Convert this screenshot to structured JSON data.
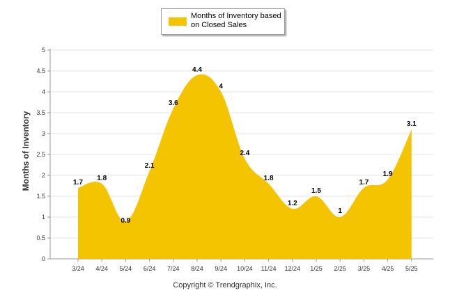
{
  "legend": {
    "label": "Months of Inventory based on Closed Sales",
    "color": "#f5c400"
  },
  "footer": {
    "copyright": "Copyright © Trendgraphix, Inc."
  },
  "chart_data": {
    "type": "area",
    "title": "",
    "xlabel": "",
    "ylabel": "Months of Inventory",
    "ylim": [
      0,
      5
    ],
    "yticks": [
      "0",
      "0.5",
      "1",
      "1.5",
      "2",
      "2.5",
      "3",
      "3.5",
      "4",
      "4.5",
      "5"
    ],
    "grid": true,
    "legend_position": "top-center",
    "categories": [
      "3/24",
      "4/24",
      "5/24",
      "6/24",
      "7/24",
      "8/24",
      "9/24",
      "10/24",
      "11/24",
      "12/24",
      "1/25",
      "2/25",
      "3/25",
      "4/25",
      "5/25"
    ],
    "series": [
      {
        "name": "Months of Inventory based on Closed Sales",
        "color": "#f5c400",
        "values": [
          1.7,
          1.8,
          0.9,
          2.1,
          3.6,
          4.4,
          4,
          2.4,
          1.8,
          1.2,
          1.5,
          1,
          1.7,
          1.9,
          3.1
        ],
        "labels": [
          "1.7",
          "1.8",
          "0.9",
          "2.1",
          "3.6",
          "4.4",
          "4",
          "2.4",
          "1.8",
          "1.2",
          "1.5",
          "1",
          "1.7",
          "1.9",
          "3.1"
        ]
      }
    ]
  }
}
